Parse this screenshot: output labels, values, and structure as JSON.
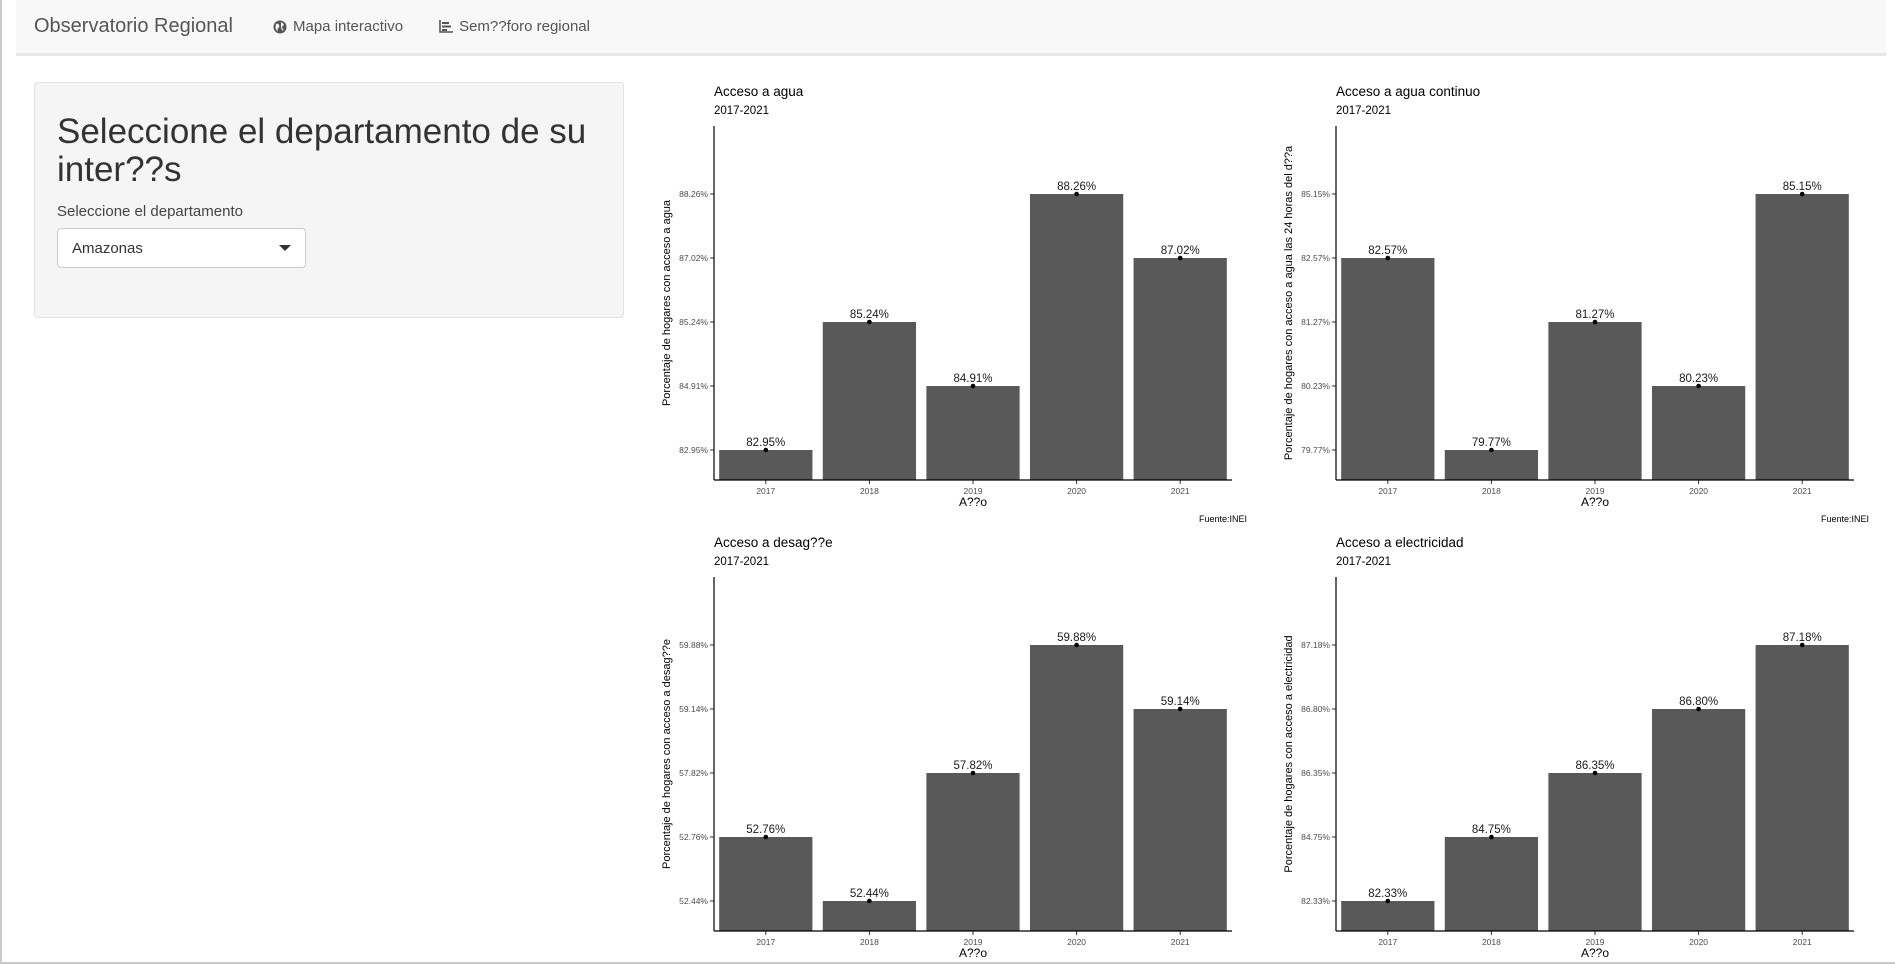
{
  "navbar": {
    "brand": "Observatorio Regional",
    "links": [
      {
        "label": "Mapa interactivo",
        "icon": "globe-icon"
      },
      {
        "label": "Sem??foro regional",
        "icon": "bar-chart-icon"
      }
    ]
  },
  "sidebar": {
    "heading": "Seleccione el departamento de su inter??s",
    "select_label": "Seleccione el departamento",
    "select_value": "Amazonas"
  },
  "colors": {
    "bar": "#595959",
    "point": "#000000",
    "axis": "#000000"
  },
  "chart_data": [
    {
      "type": "bar",
      "title": "Acceso a agua",
      "subtitle": "2017-2021",
      "ylabel": "Porcentaje de hogares con acceso a agua",
      "xlabel": "A??o",
      "caption": "Fuente:INEI",
      "categories": [
        "2017",
        "2018",
        "2019",
        "2020",
        "2021"
      ],
      "values": [
        82.95,
        85.24,
        84.91,
        88.26,
        87.02
      ],
      "labels": [
        "82.95%",
        "85.24%",
        "84.91%",
        "88.26%",
        "87.02%"
      ],
      "ticks": [
        "82.95%",
        "84.91%",
        "85.24%",
        "87.02%",
        "88.26%"
      ],
      "rank": [
        1,
        3,
        2,
        5,
        4
      ]
    },
    {
      "type": "bar",
      "title": "Acceso a agua continuo",
      "subtitle": "2017-2021",
      "ylabel": "Porcentaje de hogares con acceso a agua las 24 horas del d??a",
      "xlabel": "A??o",
      "caption": "Fuente:INEI",
      "categories": [
        "2017",
        "2018",
        "2019",
        "2020",
        "2021"
      ],
      "values": [
        82.57,
        79.77,
        81.27,
        80.23,
        85.15
      ],
      "labels": [
        "82.57%",
        "79.77%",
        "81.27%",
        "80.23%",
        "85.15%"
      ],
      "ticks": [
        "79.77%",
        "80.23%",
        "81.27%",
        "82.57%",
        "85.15%"
      ],
      "rank": [
        4,
        1,
        3,
        2,
        5
      ]
    },
    {
      "type": "bar",
      "title": "Acceso a desag??e",
      "subtitle": "2017-2021",
      "ylabel": "Porcentaje de hogares con acceso a desag??e",
      "xlabel": "A??o",
      "caption": "",
      "categories": [
        "2017",
        "2018",
        "2019",
        "2020",
        "2021"
      ],
      "values": [
        52.76,
        52.44,
        57.82,
        59.88,
        59.14
      ],
      "labels": [
        "52.76%",
        "52.44%",
        "57.82%",
        "59.88%",
        "59.14%"
      ],
      "ticks": [
        "52.44%",
        "52.76%",
        "57.82%",
        "59.14%",
        "59.88%"
      ],
      "rank": [
        2,
        1,
        3,
        5,
        4
      ]
    },
    {
      "type": "bar",
      "title": "Acceso a electricidad",
      "subtitle": "2017-2021",
      "ylabel": "Porcentaje de hogares con acceso a electricidad",
      "xlabel": "A??o",
      "caption": "",
      "categories": [
        "2017",
        "2018",
        "2019",
        "2020",
        "2021"
      ],
      "values": [
        82.33,
        84.75,
        86.35,
        86.8,
        87.18
      ],
      "labels": [
        "82.33%",
        "84.75%",
        "86.35%",
        "86.80%",
        "87.18%"
      ],
      "ticks": [
        "82.33%",
        "84.75%",
        "86.35%",
        "86.80%",
        "87.18%"
      ],
      "rank": [
        1,
        2,
        3,
        4,
        5
      ]
    }
  ]
}
